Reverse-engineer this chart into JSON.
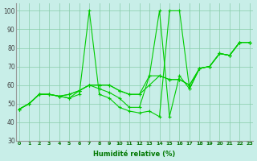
{
  "xlabel": "Humidité relative (%)",
  "background_color": "#c8eee8",
  "grid_color": "#88ccaa",
  "line_color": "#00cc00",
  "ylim": [
    30,
    104
  ],
  "xlim": [
    -0.3,
    23.3
  ],
  "yticks": [
    30,
    40,
    50,
    60,
    70,
    80,
    90,
    100
  ],
  "xticks": [
    0,
    1,
    2,
    3,
    4,
    5,
    6,
    7,
    8,
    9,
    10,
    11,
    12,
    13,
    14,
    15,
    16,
    17,
    18,
    19,
    20,
    21,
    22,
    23
  ],
  "series": [
    [
      47,
      50,
      55,
      55,
      54,
      53,
      55,
      100,
      55,
      53,
      48,
      46,
      45,
      46,
      43,
      100,
      100,
      58,
      69,
      70,
      77,
      76,
      83,
      83
    ],
    [
      47,
      50,
      55,
      55,
      54,
      53,
      57,
      60,
      58,
      56,
      53,
      48,
      48,
      65,
      100,
      43,
      65,
      58,
      69,
      70,
      77,
      76,
      83,
      83
    ],
    [
      47,
      50,
      55,
      55,
      54,
      55,
      57,
      60,
      60,
      60,
      57,
      55,
      55,
      60,
      65,
      63,
      63,
      60,
      69,
      70,
      77,
      76,
      83,
      83
    ],
    [
      47,
      50,
      55,
      55,
      54,
      55,
      57,
      60,
      60,
      60,
      57,
      55,
      55,
      65,
      65,
      63,
      63,
      60,
      69,
      70,
      77,
      76,
      83,
      83
    ]
  ],
  "xlabel_fontsize": 6,
  "xlabel_color": "#007700",
  "xtick_fontsize": 4.5,
  "ytick_fontsize": 5.5,
  "linewidth": 0.8,
  "markersize": 3
}
